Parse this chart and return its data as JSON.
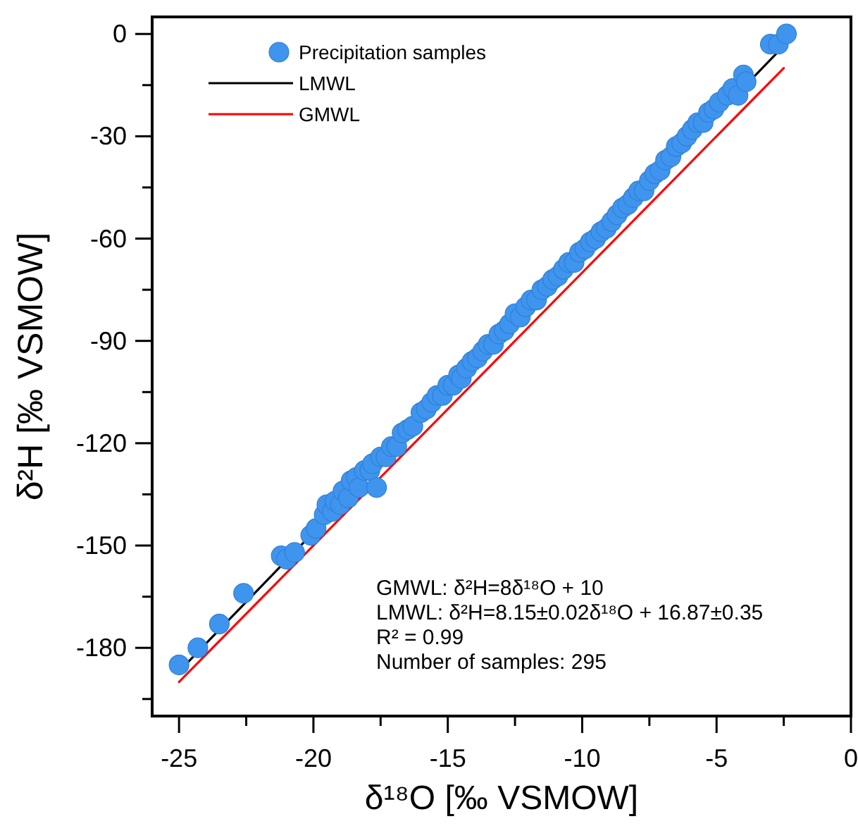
{
  "chart_data": {
    "type": "scatter",
    "xlabel": "δ¹⁸O [‰ VSMOW]",
    "ylabel": "δ²H [‰ VSMOW]",
    "xlim": [
      -26,
      0
    ],
    "ylim": [
      -200,
      5
    ],
    "xticks": [
      -25,
      {
        "value": -22.5,
        "label": null
      },
      -20,
      {
        "value": -17.5,
        "label": null
      },
      -15,
      {
        "value": -12.5,
        "label": null
      },
      -10,
      {
        "value": -7.5,
        "label": null
      },
      -5,
      {
        "value": -2.5,
        "label": null
      },
      0
    ],
    "yticks": [
      0,
      {
        "value": -15,
        "label": null
      },
      -30,
      {
        "value": -45,
        "label": null
      },
      -60,
      {
        "value": -75,
        "label": null
      },
      -90,
      {
        "value": -105,
        "label": null
      },
      -120,
      {
        "value": -135,
        "label": null
      },
      -150,
      {
        "value": -165,
        "label": null
      },
      -180,
      {
        "value": -195,
        "label": null
      }
    ],
    "grid": false,
    "legend": "top left",
    "series": [
      {
        "name": "Precipitation samples",
        "color": "#3f95ee",
        "marker": "circle",
        "x": [
          -25,
          -24.3,
          -23.5,
          -22.6,
          -21.2,
          -21.0,
          -20.7,
          -20.1,
          -19.9,
          -19.6,
          -19.5,
          -19.3,
          -19.2,
          -19.0,
          -18.9,
          -18.7,
          -18.6,
          -18.4,
          -18.3,
          -18.1,
          -17.9,
          -17.65,
          -17.8,
          -17.5,
          -17.3,
          -17.1,
          -16.9,
          -16.7,
          -16.5,
          -16.3,
          -16.0,
          -15.8,
          -15.6,
          -15.4,
          -15.2,
          -15.0,
          -14.8,
          -14.6,
          -14.5,
          -14.3,
          -14.1,
          -13.9,
          -13.7,
          -13.5,
          -13.3,
          -13.1,
          -12.9,
          -12.7,
          -12.5,
          -12.3,
          -12.1,
          -11.9,
          -11.7,
          -11.5,
          -11.3,
          -11.1,
          -10.9,
          -10.7,
          -10.5,
          -10.3,
          -10.1,
          -9.9,
          -9.7,
          -9.5,
          -9.3,
          -9.1,
          -8.9,
          -8.7,
          -8.5,
          -8.3,
          -8.1,
          -7.9,
          -7.7,
          -7.5,
          -7.3,
          -7.1,
          -6.9,
          -6.7,
          -6.5,
          -6.3,
          -6.1,
          -5.9,
          -5.7,
          -5.5,
          -5.3,
          -5.1,
          -4.9,
          -4.6,
          -4.4,
          -4.2,
          -4.0,
          -3.9,
          -3.0,
          -2.7,
          -2.4
        ],
        "values": [
          -185,
          -180,
          -173,
          -164,
          -153,
          -154,
          -152,
          -147,
          -145,
          -141,
          -138,
          -140,
          -137,
          -138,
          -134,
          -136,
          -131,
          -130,
          -133,
          -128,
          -128,
          -133,
          -126,
          -124,
          -124,
          -121,
          -121,
          -117,
          -116,
          -115,
          -111,
          -110,
          -108,
          -106,
          -106,
          -103,
          -103,
          -100,
          -101,
          -98,
          -96,
          -95,
          -93,
          -91,
          -91,
          -88,
          -87,
          -85,
          -82,
          -83,
          -80,
          -78,
          -78,
          -75,
          -74,
          -72,
          -71,
          -69,
          -67,
          -67,
          -64,
          -63,
          -61,
          -60,
          -58,
          -57,
          -55,
          -53,
          -51,
          -50,
          -48,
          -46,
          -46,
          -43,
          -41,
          -40,
          -37,
          -36,
          -33,
          -32,
          -30,
          -28,
          -26,
          -26,
          -23,
          -22,
          -20,
          -18,
          -16,
          -18,
          -12,
          -14,
          -3,
          -3,
          0
        ]
      },
      {
        "name": "LMWL",
        "type": "line",
        "color": "#000000",
        "line_style": "solid",
        "x": [
          -25,
          -2.5
        ],
        "values": [
          -186.9,
          -3.5
        ]
      },
      {
        "name": "GMWL",
        "type": "line",
        "color": "#ff0000",
        "line_style": "solid",
        "x": [
          -25,
          -2.5
        ],
        "values": [
          -190,
          -10
        ]
      }
    ],
    "annotations": [
      "GMWL: δ²H=8δ¹⁸O + 10",
      "LMWL: δ²H=8.15±0.02δ¹⁸O + 16.87±0.35",
      "R² = 0.99",
      "Number of samples: 295"
    ]
  }
}
